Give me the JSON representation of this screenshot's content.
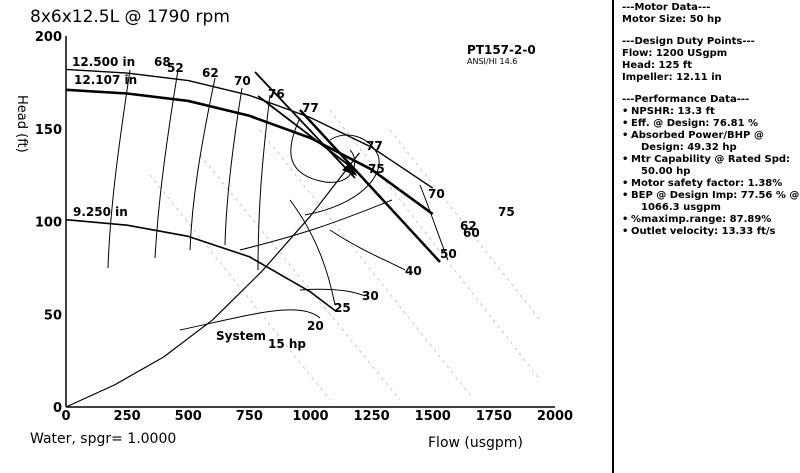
{
  "chart_data": {
    "type": "line",
    "title": "8x6x12.5L @ 1790 rpm",
    "model": "PT157-2-0",
    "standard": "ANSI/HI 14.6",
    "xlabel": "Flow (usgpm)",
    "ylabel": "Head (ft)",
    "fluid": "Water, spgr= 1.0000",
    "xlim": [
      0,
      2000
    ],
    "ylim": [
      0,
      200
    ],
    "x_ticks": [
      "0",
      "250",
      "500",
      "750",
      "1000",
      "1250",
      "1500",
      "1750",
      "2000"
    ],
    "y_ticks": [
      "0",
      "50",
      "100",
      "150",
      "200"
    ],
    "series": [
      {
        "name": "12.500 in",
        "x": [
          0,
          250,
          500,
          750,
          1000,
          1250,
          1500
        ],
        "y": [
          182,
          180,
          176,
          168,
          156,
          140,
          118
        ]
      },
      {
        "name": "12.107 in",
        "x": [
          0,
          250,
          500,
          750,
          1000,
          1250,
          1500
        ],
        "y": [
          171,
          169,
          165,
          157,
          145,
          128,
          104
        ]
      },
      {
        "name": "9.250 in",
        "x": [
          0,
          250,
          500,
          750,
          1000,
          1100
        ],
        "y": [
          101,
          98,
          92,
          81,
          62,
          52
        ]
      },
      {
        "name": "System",
        "x": [
          0,
          200,
          400,
          600,
          800,
          1000,
          1200
        ],
        "y": [
          0,
          12,
          27,
          47,
          73,
          103,
          137
        ]
      }
    ],
    "efficiency_labels": [
      "68",
      "52",
      "62",
      "70",
      "76",
      "77",
      "77",
      "75",
      "70",
      "75",
      "62",
      "60"
    ],
    "power_labels": [
      "15 hp",
      "20",
      "25",
      "30",
      "40",
      "50"
    ],
    "design_point": {
      "flow": 1200,
      "head": 125
    }
  },
  "sidebar": {
    "motor": {
      "header": "---Motor Data---",
      "lines": [
        "Motor Size: 50 hp"
      ]
    },
    "design": {
      "header": "---Design Duty Points---",
      "lines": [
        "Flow: 1200 USgpm",
        "Head: 125 ft",
        "Impeller: 12.11 in"
      ]
    },
    "performance": {
      "header": "---Performance Data---",
      "items": [
        {
          "text": "NPSHR: 13.3 ft"
        },
        {
          "text": "Eff. @ Design: 76.81 %"
        },
        {
          "text": "Absorbed Power/BHP @",
          "cont": "Design: 49.32 hp"
        },
        {
          "text": "Mtr Capability @ Rated Spd:",
          "cont": "50.00 hp"
        },
        {
          "text": "Motor safety factor: 1.38%"
        },
        {
          "text": "BEP @ Design Imp: 77.56 % @",
          "cont": "1066.3 usgpm"
        },
        {
          "text": "%maximp.range: 87.89%"
        },
        {
          "text": "Outlet velocity: 13.33 ft/s"
        }
      ]
    }
  }
}
